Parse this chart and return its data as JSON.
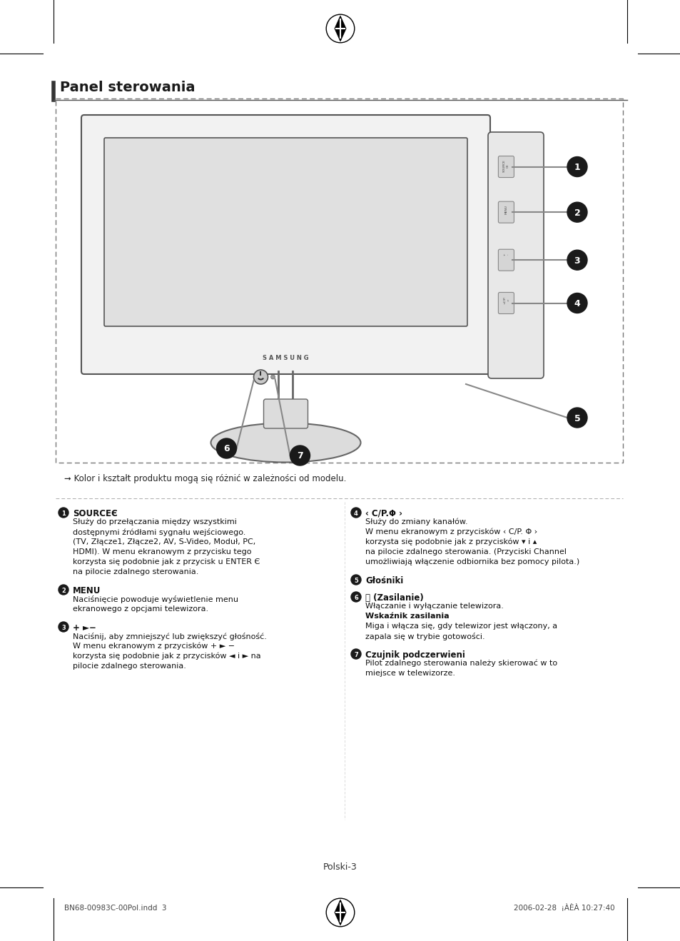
{
  "page_title": "Panel sterowania",
  "bg_color": "#ffffff",
  "border_color": "#000000",
  "dashed_box": true,
  "footer_left": "BN68-00983C-00Pol.indd  3",
  "footer_right": "2006-02-28  ¡ÀÈÀ 10:27:40",
  "page_number": "Polski-3",
  "note_text": "➞ Kolor i kształt produktu mogą się różnić w zależności od modelu.",
  "items": [
    {
      "number": "1",
      "title": "SOURCEЄ",
      "body": "Służy do przełączania między wszystkimi\ndostępnymi źródłami sygnału wejściowego.\n(TV, Złącze1, Złącze2, AV, S-Video, Moduł, PC,\nHDMI). W menu ekranowym z przycisku tego\nkorzysta się podobnie jak z przycisk u ENTER Є\nna pilocie zdalnego sterowania.",
      "col": 0
    },
    {
      "number": "2",
      "title": "MENU",
      "body": "Naciśnięcie powoduje wyświetlenie menu\nekranowego z opcjami telewizora.",
      "col": 0
    },
    {
      "number": "3",
      "title": "+ ►−",
      "body": "Naciśnij, aby zmniejszyć lub zwiększyć głośność.\nW menu ekranowym z przycisków + ► −\nkorzysta się podobnie jak z przycisków ◄ i ► na\npilocie zdalnego sterowania.",
      "col": 0
    },
    {
      "number": "4",
      "title": "‹ C/P.Φ ›",
      "body": "Służy do zmiany kanałów.\nW menu ekranowym z przycisków ‹ C/P. Φ ›\nkorzysta się podobnie jak z przycisków ▾ i ▴\nna pilocie zdalnego sterowania. (Przyciski Channel\numożliwiają włączenie odbiornika bez pomocy pilota.)",
      "col": 1
    },
    {
      "number": "5",
      "title": "Głośniki",
      "body": "",
      "col": 1
    },
    {
      "number": "6",
      "title": "⏻ (Zasilanie)",
      "body_lines": [
        {
          "text": "Włączanie i wyłączanie telewizora.",
          "bold": false
        },
        {
          "text": "Wskaźnik zasilania",
          "bold": true
        },
        {
          "text": "Miga i włącza się, gdy telewizor jest włączony, a",
          "bold": false
        },
        {
          "text": "zapala się w trybie gotowości.",
          "bold": false
        }
      ],
      "body": "Włączanie i wyłączanie telewizora.\nWskaźnik zasilania\nMiga i włącza się, gdy telewizor jest włączony, a\nzapala się w trybie gotowości.",
      "col": 1
    },
    {
      "number": "7",
      "title": "Czujnik podczerwieni",
      "body": "Pilot zdalnego sterowania należy skierować w to\nmiejsce w telewizorze.",
      "col": 1
    }
  ]
}
